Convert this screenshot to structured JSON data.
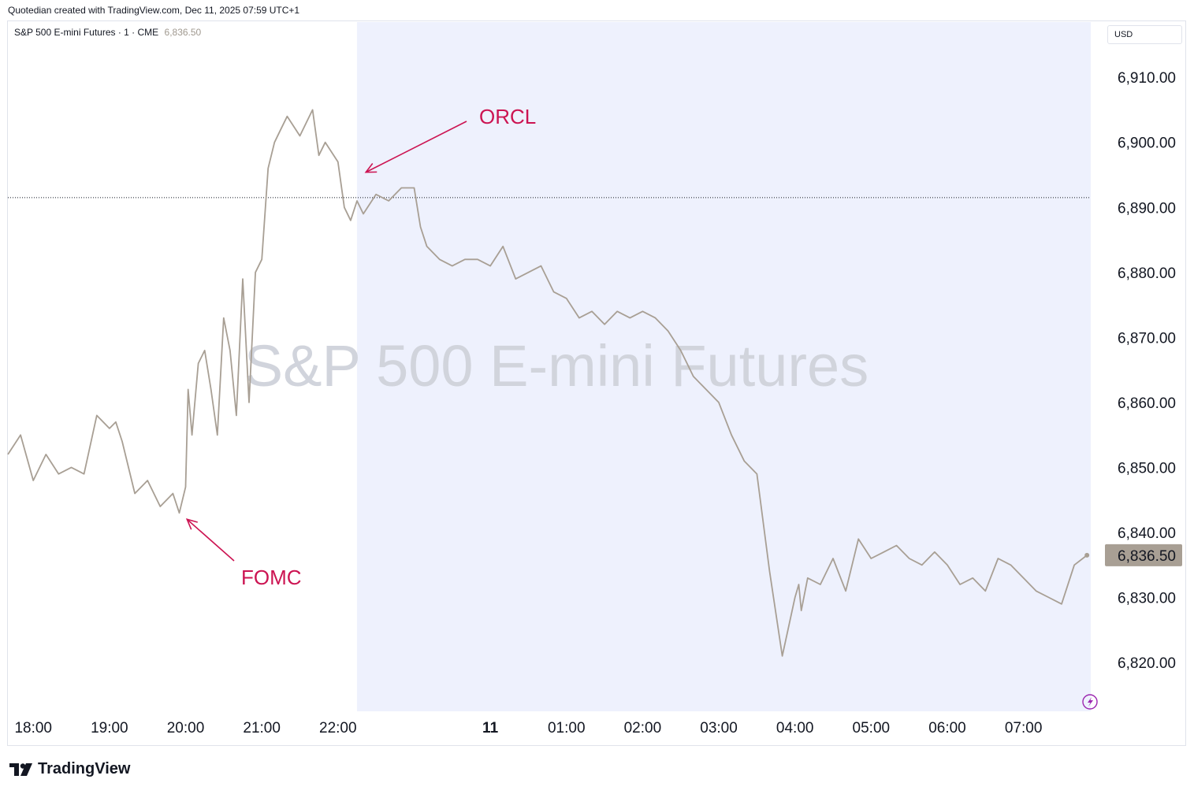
{
  "header": {
    "caption": "Quotedian created with TradingView.com, Dec 11, 2025 07:59 UTC+1"
  },
  "legend": {
    "symbol": "S&P 500 E-mini Futures · 1 · CME",
    "last": "6,836.50"
  },
  "currency_label": "USD",
  "watermark": "S&P 500 E-mini Futures",
  "footer": {
    "brand": "TradingView"
  },
  "colors": {
    "line": "#a89f94",
    "session_shade": "#eef1fd",
    "annotation": "#cc1452",
    "price_label_bg": "#a89f94"
  },
  "chart_data": {
    "type": "line",
    "xlabel": "",
    "ylabel": "",
    "x_ticks": [
      "18:00",
      "19:00",
      "20:00",
      "21:00",
      "22:00",
      "11",
      "01:00",
      "02:00",
      "03:00",
      "04:00",
      "05:00",
      "06:00",
      "07:00"
    ],
    "y_ticks": [
      "6,910.00",
      "6,900.00",
      "6,890.00",
      "6,880.00",
      "6,870.00",
      "6,860.00",
      "6,850.00",
      "6,840.00",
      "6,830.00",
      "6,820.00"
    ],
    "ylim": [
      6812.5,
      6918.5
    ],
    "xlim_hours": [
      "17:40",
      "07:53"
    ],
    "shaded_region": {
      "from": "22:15",
      "to": "07:53"
    },
    "reference_line": 6891.5,
    "last_price_label": "6,836.50",
    "last_price": 6836.5,
    "grid": false,
    "series": [
      {
        "x": [
          "17:40",
          "17:50",
          "18:00",
          "18:10",
          "18:20",
          "18:30",
          "18:40",
          "18:50",
          "19:00",
          "19:05",
          "19:10",
          "19:20",
          "19:30",
          "19:40",
          "19:50",
          "19:55",
          "20:00",
          "20:02",
          "20:05",
          "20:10",
          "20:15",
          "20:20",
          "20:25",
          "20:30",
          "20:35",
          "20:40",
          "20:45",
          "20:50",
          "20:55",
          "21:00",
          "21:05",
          "21:10",
          "21:15",
          "21:20",
          "21:30",
          "21:40",
          "21:45",
          "21:50",
          "22:00",
          "22:05",
          "22:10",
          "22:15",
          "22:20",
          "22:30",
          "22:40",
          "22:50",
          "23:00",
          "23:05",
          "23:10",
          "23:20",
          "23:30",
          "23:40",
          "23:50",
          "00:00",
          "00:10",
          "00:20",
          "00:30",
          "00:40",
          "00:50",
          "01:00",
          "01:10",
          "01:20",
          "01:30",
          "01:40",
          "01:50",
          "02:00",
          "02:10",
          "02:20",
          "02:30",
          "02:40",
          "02:50",
          "03:00",
          "03:10",
          "03:20",
          "03:30",
          "03:40",
          "03:50",
          "04:00",
          "04:03",
          "04:05",
          "04:10",
          "04:20",
          "04:30",
          "04:40",
          "04:50",
          "05:00",
          "05:10",
          "05:20",
          "05:30",
          "05:40",
          "05:50",
          "06:00",
          "06:10",
          "06:20",
          "06:30",
          "06:40",
          "06:50",
          "07:00",
          "07:10",
          "07:20",
          "07:30",
          "07:40",
          "07:50"
        ],
        "y": [
          6852,
          6855,
          6848,
          6852,
          6849,
          6850,
          6849,
          6858,
          6856,
          6857,
          6854,
          6846,
          6848,
          6844,
          6846,
          6843,
          6847,
          6862,
          6855,
          6866,
          6868,
          6862,
          6855,
          6873,
          6868,
          6858,
          6879,
          6860,
          6880,
          6882,
          6896,
          6900,
          6902,
          6904,
          6901,
          6905,
          6898,
          6900,
          6897,
          6890,
          6888,
          6891,
          6889,
          6892,
          6891,
          6893,
          6893,
          6887,
          6884,
          6882,
          6881,
          6882,
          6882,
          6881,
          6884,
          6879,
          6880,
          6881,
          6877,
          6876,
          6873,
          6874,
          6872,
          6874,
          6873,
          6874,
          6873,
          6871,
          6868,
          6864,
          6862,
          6860,
          6855,
          6851,
          6849,
          6834,
          6821,
          6830,
          6832,
          6828,
          6833,
          6832,
          6836,
          6831,
          6839,
          6836,
          6837,
          6838,
          6836,
          6835,
          6837,
          6835,
          6832,
          6833,
          6831,
          6836,
          6835,
          6833,
          6831,
          6830,
          6829,
          6835,
          6836.5
        ]
      }
    ],
    "annotations": [
      {
        "text": "ORCL",
        "x": "22:22",
        "y": 6892.5
      },
      {
        "text": "FOMC",
        "x": "19:58",
        "y": 6843
      }
    ]
  }
}
